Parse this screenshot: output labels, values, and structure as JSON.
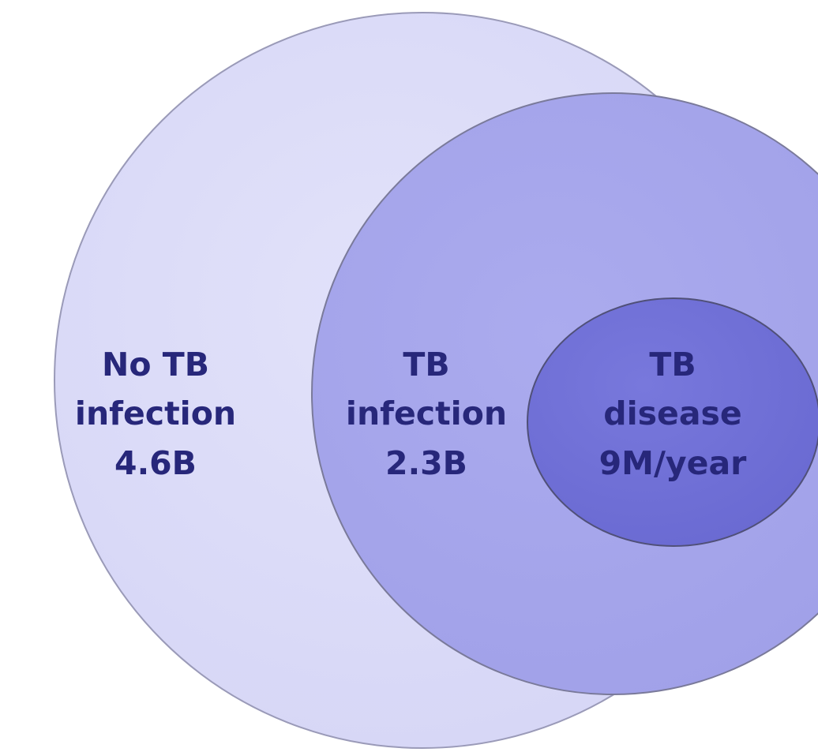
{
  "nodes": [
    {
      "lines": [
        "No TB",
        "infection",
        "4.6B"
      ]
    },
    {
      "lines": [
        "TB",
        "infection",
        "2.3B"
      ]
    },
    {
      "lines": [
        "TB",
        "disease",
        "9M/year"
      ]
    }
  ]
}
